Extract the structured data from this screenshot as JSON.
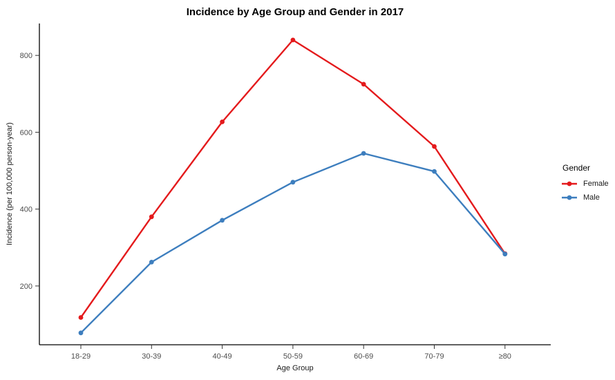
{
  "chart_data": {
    "type": "line",
    "title": "Incidence by Age Group and Gender in 2017",
    "xlabel": "Age Group",
    "ylabel": "Incidence (per 100,000 person-year)",
    "categories": [
      "18-29",
      "30-39",
      "40-49",
      "50-59",
      "60-69",
      "70-79",
      "≥80"
    ],
    "series": [
      {
        "name": "Female",
        "color": "#E41A1C",
        "values": [
          118,
          380,
          627,
          840,
          725,
          563,
          284
        ]
      },
      {
        "name": "Male",
        "color": "#3D7EBE",
        "values": [
          78,
          262,
          371,
          470,
          545,
          498,
          283
        ]
      }
    ],
    "yticks": [
      200,
      400,
      600,
      800
    ],
    "ylim": [
      47,
      883
    ],
    "grid": false,
    "legend": {
      "title": "Gender",
      "position": "right"
    },
    "axis_color": "#000000",
    "tick_label_color": "#4d4d4d"
  }
}
